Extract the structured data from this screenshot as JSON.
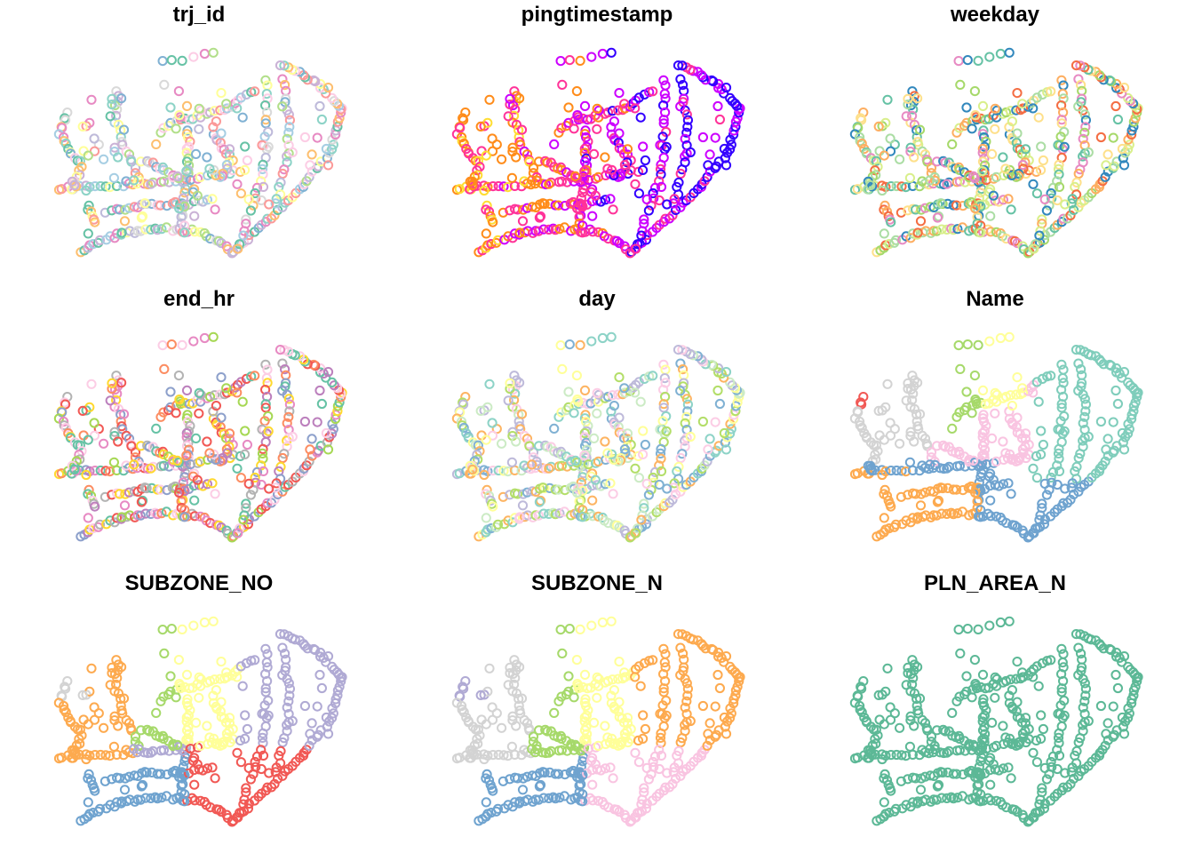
{
  "figure": {
    "panels": [
      {
        "title": "trj_id",
        "scheme": "mixed",
        "palette": [
          "#a6cee3",
          "#b2df8a",
          "#fb9a99",
          "#fdbf6f",
          "#cab2d6",
          "#ffff99",
          "#8dd3c7",
          "#bebada",
          "#80b1d3",
          "#fccde5",
          "#d9d9d9",
          "#66c2a5",
          "#e78ac3"
        ]
      },
      {
        "title": "pingtimestamp",
        "scheme": "time",
        "palette": [
          "#ffdd33",
          "#ff8c1a",
          "#ff3399",
          "#cc00ff",
          "#3300ff"
        ]
      },
      {
        "title": "weekday",
        "scheme": "mixed",
        "palette": [
          "#f46d43",
          "#fdae61",
          "#fee08b",
          "#d9ef8b",
          "#a6d96a",
          "#66c2a5",
          "#3288bd",
          "#e78ac3",
          "#abdda4"
        ]
      },
      {
        "title": "end_hr",
        "scheme": "mixed",
        "palette": [
          "#f15854",
          "#66c2a5",
          "#fc8d62",
          "#8da0cb",
          "#e78ac3",
          "#a6d854",
          "#ffd92f",
          "#b3b3b3",
          "#bc80bd",
          "#fccde5"
        ]
      },
      {
        "title": "day",
        "scheme": "mixed",
        "palette": [
          "#ffff99",
          "#fccde5",
          "#8dd3c7",
          "#fdb462",
          "#b3de69",
          "#80b1d3",
          "#bebada",
          "#ccebc5"
        ]
      },
      {
        "title": "Name",
        "scheme": "region1",
        "palette": [
          "#f15854",
          "#d3d3d3",
          "#fdaa4f",
          "#a6d96a",
          "#ffff99",
          "#f9c4e1",
          "#7fcdbb",
          "#6fa3cf"
        ]
      },
      {
        "title": "SUBZONE_NO",
        "scheme": "region2",
        "palette": [
          "#d3d3d3",
          "#fdaa4f",
          "#6fa3cf",
          "#f15854",
          "#ffff99",
          "#a6d96a",
          "#b0aad4",
          "#7fcdbb",
          "#f9c4e1"
        ]
      },
      {
        "title": "SUBZONE_N",
        "scheme": "region3",
        "palette": [
          "#b0aad4",
          "#d3d3d3",
          "#6fa3cf",
          "#f9c4e1",
          "#fdaa4f",
          "#ffff99",
          "#a6d96a",
          "#7fcdbb",
          "#f15854"
        ]
      },
      {
        "title": "PLN_AREA_N",
        "scheme": "single",
        "palette": [
          "#5cb896"
        ]
      }
    ]
  },
  "chart_data": {
    "type": "scatter",
    "layout": "3x3 small multiples of the same point trajectories, coloured by a different attribute in each panel",
    "facets": [
      "trj_id",
      "pingtimestamp",
      "weekday",
      "end_hr",
      "day",
      "Name",
      "SUBZONE_NO",
      "SUBZONE_N",
      "PLN_AREA_N"
    ],
    "marker": "open circle",
    "axes": "none",
    "legend": "none",
    "grid": false
  }
}
